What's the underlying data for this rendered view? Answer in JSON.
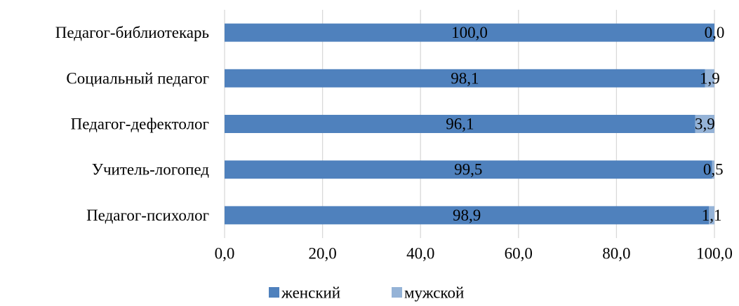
{
  "chart_data": {
    "type": "bar",
    "orientation": "horizontal",
    "stacked": true,
    "title": "",
    "xlabel": "",
    "ylabel": "",
    "categories": [
      "Педагог-психолог",
      "Учитель-логопед",
      "Педагог-дефектолог",
      "Социальный педагог",
      "Педагог-библиотекарь"
    ],
    "series": [
      {
        "name": "женский",
        "color": "#4f81bd",
        "values": [
          98.9,
          99.5,
          96.1,
          98.1,
          100.0
        ],
        "labels": [
          "98,9",
          "99,5",
          "96,1",
          "98,1",
          "100,0"
        ]
      },
      {
        "name": "мужской",
        "color": "#95b3d7",
        "values": [
          1.1,
          0.5,
          3.9,
          1.9,
          0.0
        ],
        "labels": [
          "1,1",
          "0,5",
          "3,9",
          "1,9",
          "0,0"
        ]
      }
    ],
    "xlim": [
      0,
      100
    ],
    "xticks": [
      0,
      20,
      40,
      60,
      80,
      100
    ],
    "xtick_labels": [
      "0,0",
      "20,0",
      "40,0",
      "60,0",
      "80,0",
      "100,0"
    ],
    "grid": "vertical",
    "legend": "bottom"
  }
}
